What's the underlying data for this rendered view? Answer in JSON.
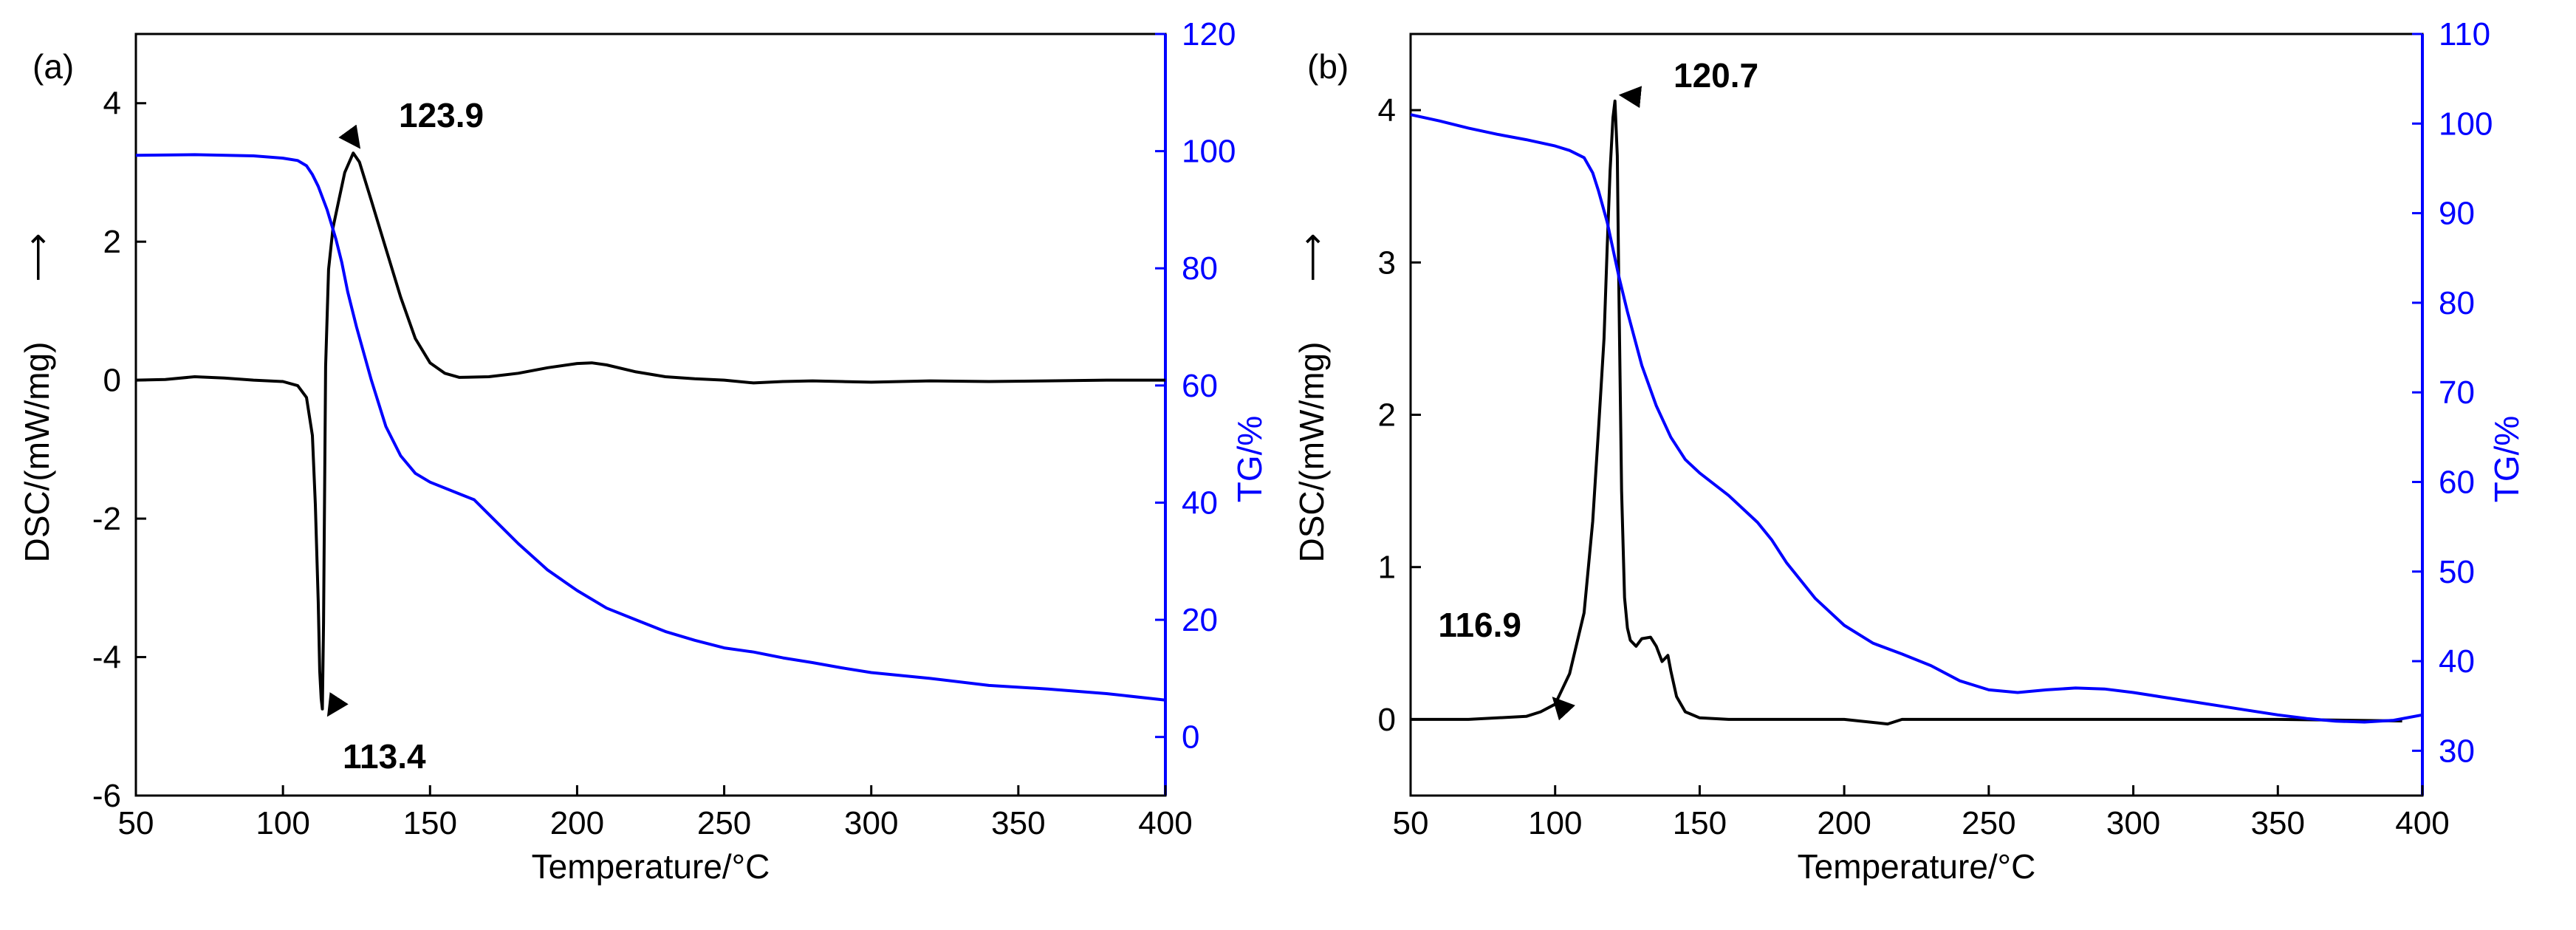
{
  "chart_data": [
    {
      "panel_label": "(a)",
      "type": "line",
      "xlabel": "Temperature/°C",
      "ylabel_left": "DSC/(mW/mg)",
      "ylabel_left_arrow": "⟶",
      "ylabel_right": "TG/%",
      "xlim": [
        50,
        400
      ],
      "ylim_left": [
        -6,
        5
      ],
      "ylim_right": [
        -10,
        120
      ],
      "x_ticks": [
        "50",
        "100",
        "150",
        "200",
        "250",
        "300",
        "350",
        "400"
      ],
      "y_left_ticks": [
        "-6",
        "-4",
        "-2",
        "0",
        "2",
        "4"
      ],
      "y_right_ticks": [
        "0",
        "20",
        "40",
        "60",
        "80",
        "100",
        "120"
      ],
      "colors": {
        "dsc": "#000000",
        "tg": "#0000ff"
      },
      "series": [
        {
          "name": "DSC",
          "axis": "left",
          "x": [
            50,
            60,
            70,
            80,
            90,
            100,
            105,
            108,
            110,
            111,
            112,
            112.5,
            113,
            113.4,
            113.8,
            114.5,
            115.5,
            117,
            119,
            121,
            123.9,
            126,
            130,
            135,
            140,
            145,
            150,
            155,
            160,
            170,
            180,
            190,
            200,
            205,
            210,
            220,
            230,
            240,
            250,
            260,
            270,
            280,
            290,
            300,
            320,
            340,
            360,
            380,
            400
          ],
          "y": [
            0.0,
            0.01,
            0.05,
            0.03,
            0.0,
            -0.02,
            -0.08,
            -0.25,
            -0.8,
            -1.8,
            -3.2,
            -4.2,
            -4.6,
            -4.75,
            -3.5,
            0.2,
            1.6,
            2.2,
            2.6,
            3.0,
            3.28,
            3.15,
            2.6,
            1.9,
            1.2,
            0.6,
            0.25,
            0.1,
            0.04,
            0.05,
            0.1,
            0.18,
            0.24,
            0.25,
            0.22,
            0.12,
            0.05,
            0.02,
            0.0,
            -0.04,
            -0.02,
            -0.01,
            -0.02,
            -0.03,
            -0.01,
            -0.02,
            -0.01,
            0.0,
            0.0
          ]
        },
        {
          "name": "TG",
          "axis": "right",
          "x": [
            50,
            70,
            90,
            100,
            105,
            108,
            110,
            112,
            115,
            118,
            120,
            122,
            125,
            130,
            135,
            140,
            145,
            150,
            160,
            165,
            170,
            180,
            190,
            200,
            210,
            220,
            230,
            240,
            250,
            260,
            270,
            280,
            290,
            300,
            320,
            340,
            360,
            380,
            400
          ],
          "y": [
            99.3,
            99.4,
            99.2,
            98.8,
            98.4,
            97.5,
            96.0,
            94.0,
            90.0,
            85.0,
            81.0,
            76.0,
            70.0,
            61.0,
            53.0,
            48.0,
            45.0,
            43.5,
            41.5,
            40.5,
            38.0,
            33.0,
            28.5,
            25.0,
            22.0,
            20.0,
            18.0,
            16.5,
            15.2,
            14.5,
            13.5,
            12.7,
            11.8,
            11.0,
            10.0,
            8.8,
            8.2,
            7.4,
            6.3
          ]
        }
      ],
      "annotations": [
        {
          "text": "123.9",
          "x": 123.9,
          "y": 3.28,
          "axis": "left"
        },
        {
          "text": "113.4",
          "x": 113.4,
          "y": -4.75,
          "axis": "left"
        }
      ]
    },
    {
      "panel_label": "(b)",
      "type": "line",
      "xlabel": "Temperature/°C",
      "ylabel_left": "DSC/(mW/mg)",
      "ylabel_left_arrow": "⟶",
      "ylabel_right": "TG/%",
      "xlim": [
        50,
        400
      ],
      "ylim_left": [
        -0.5,
        4.5
      ],
      "ylim_right": [
        25,
        110
      ],
      "x_ticks": [
        "50",
        "100",
        "150",
        "200",
        "250",
        "300",
        "350",
        "400"
      ],
      "y_left_ticks": [
        "0",
        "1",
        "2",
        "3",
        "4"
      ],
      "y_right_ticks": [
        "30",
        "40",
        "50",
        "60",
        "70",
        "80",
        "90",
        "100",
        "110"
      ],
      "colors": {
        "dsc": "#000000",
        "tg": "#0000ff"
      },
      "series": [
        {
          "name": "DSC",
          "axis": "left",
          "x": [
            50,
            70,
            90,
            95,
            100,
            105,
            110,
            113,
            115,
            116.9,
            118,
            119,
            120,
            120.7,
            121.5,
            122,
            123,
            124,
            125,
            126,
            128,
            130,
            133,
            135,
            137,
            139,
            140,
            142,
            145,
            150,
            160,
            200,
            215,
            220,
            250,
            300,
            350,
            393
          ],
          "y": [
            0.0,
            0.0,
            0.02,
            0.05,
            0.1,
            0.3,
            0.7,
            1.3,
            1.9,
            2.5,
            3.1,
            3.6,
            3.95,
            4.06,
            3.7,
            2.9,
            1.5,
            0.8,
            0.6,
            0.52,
            0.48,
            0.53,
            0.54,
            0.48,
            0.38,
            0.42,
            0.32,
            0.15,
            0.05,
            0.01,
            0.0,
            0.0,
            -0.03,
            0.0,
            0.0,
            0.0,
            0.0,
            -0.01
          ]
        },
        {
          "name": "TG",
          "axis": "right",
          "x": [
            50,
            60,
            70,
            80,
            90,
            100,
            105,
            110,
            113,
            115,
            118,
            120,
            122,
            125,
            130,
            135,
            140,
            145,
            150,
            160,
            170,
            175,
            180,
            190,
            200,
            210,
            220,
            230,
            240,
            250,
            260,
            270,
            280,
            290,
            300,
            310,
            320,
            330,
            340,
            350,
            360,
            370,
            380,
            390,
            400
          ],
          "y": [
            101,
            100.3,
            99.5,
            98.8,
            98.2,
            97.5,
            97.0,
            96.2,
            94.5,
            92.5,
            89.0,
            86.0,
            83.0,
            79.0,
            73.0,
            68.5,
            65.0,
            62.5,
            61.0,
            58.5,
            55.5,
            53.5,
            51.0,
            47.0,
            44.0,
            42.0,
            40.8,
            39.5,
            37.8,
            36.8,
            36.5,
            36.8,
            37.0,
            36.9,
            36.5,
            36.0,
            35.5,
            35.0,
            34.5,
            34.0,
            33.6,
            33.3,
            33.2,
            33.4,
            34.0
          ]
        }
      ],
      "annotations": [
        {
          "text": "120.7",
          "x": 120.7,
          "y": 4.06,
          "axis": "left"
        },
        {
          "text": "116.9",
          "x": 116.9,
          "y": 2.5,
          "axis": "left",
          "arrow_target_y": 0.1,
          "arrow_target_x": 101
        }
      ]
    }
  ]
}
